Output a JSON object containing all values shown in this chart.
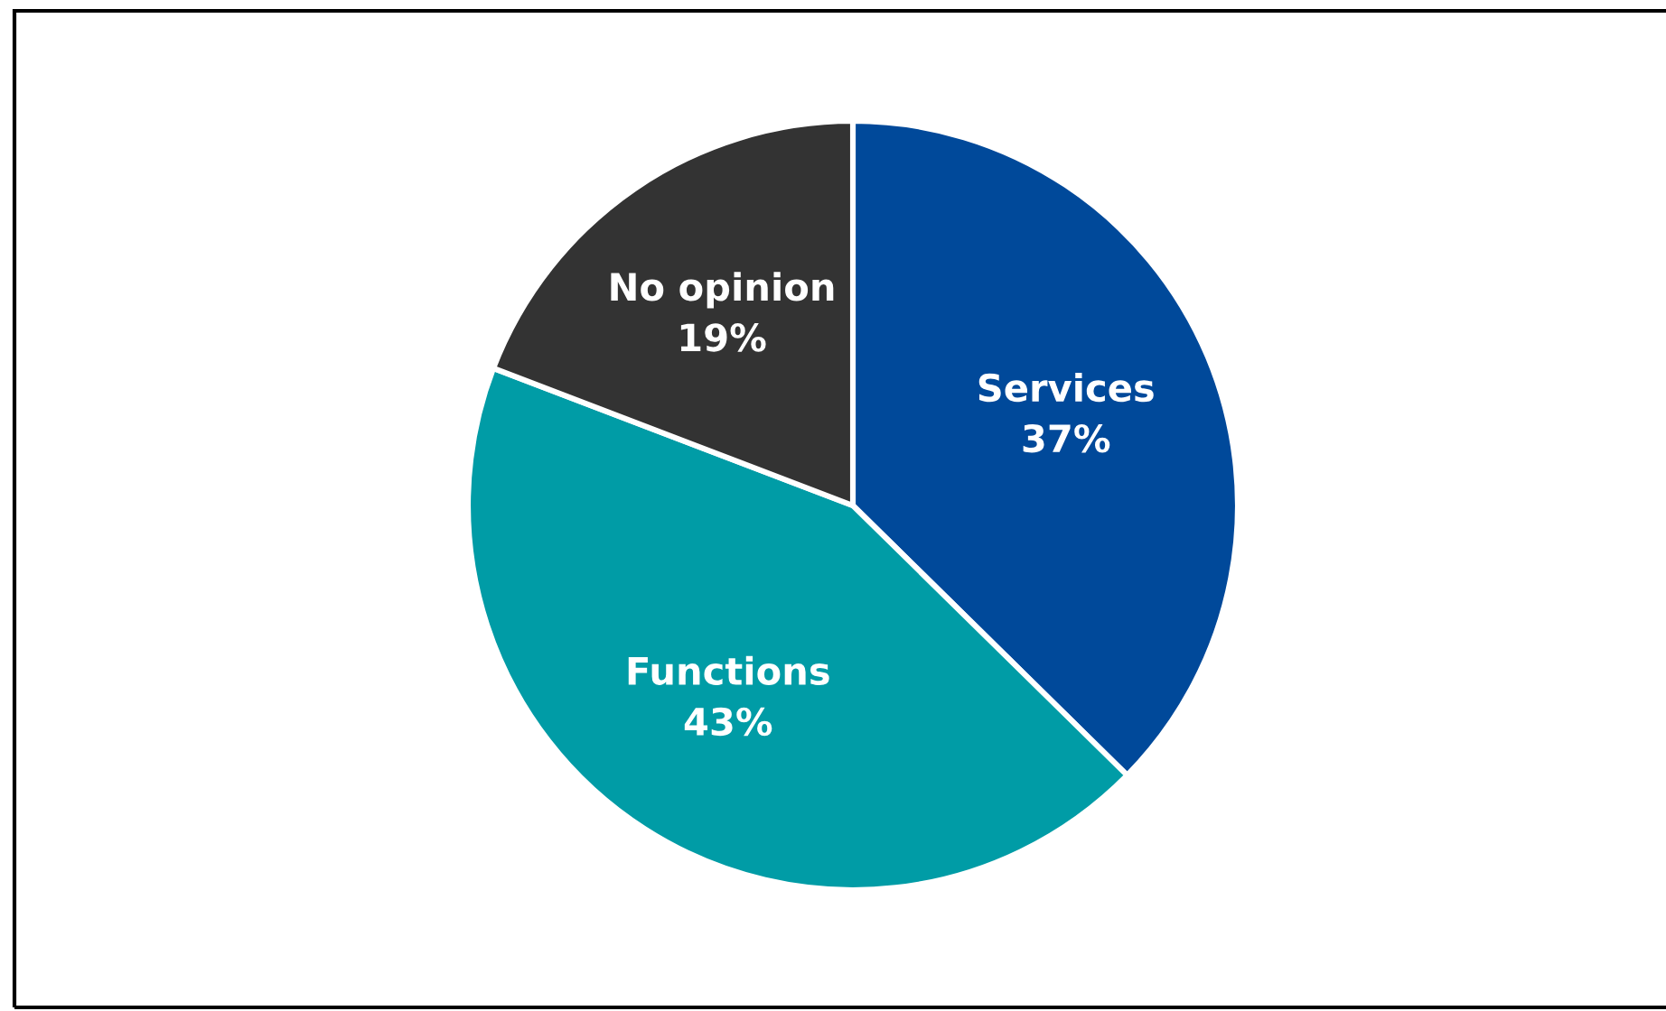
{
  "chart_data": {
    "type": "pie",
    "categories": [
      "Services",
      "Functions",
      "No opinion"
    ],
    "values": [
      37,
      43,
      19
    ],
    "value_labels": [
      "37%",
      "43%",
      "19%"
    ],
    "colors": [
      "#00499a",
      "#009ca6",
      "#333333"
    ]
  }
}
